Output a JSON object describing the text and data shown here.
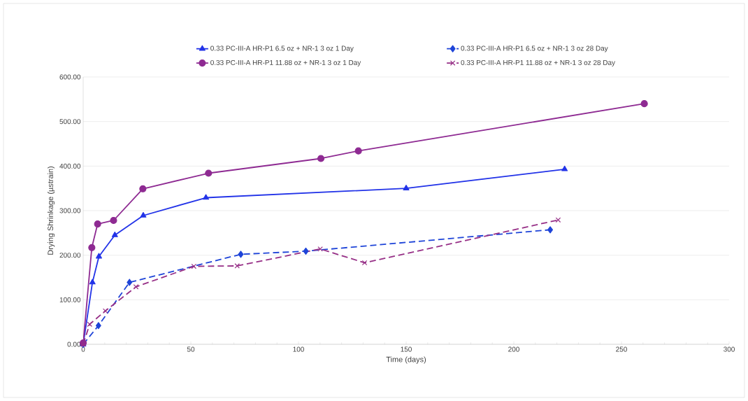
{
  "chart_data": {
    "type": "line",
    "xlabel": "Time (days)",
    "ylabel": "Drying Shrinkage (µstrain)",
    "xlim": [
      0,
      300
    ],
    "xticks": [
      0,
      50,
      100,
      150,
      200,
      250,
      300
    ],
    "ylim": [
      0,
      600
    ],
    "yticks": [
      {
        "value": 0,
        "label": "0.00"
      },
      {
        "value": 100,
        "label": "100.00"
      },
      {
        "value": 200,
        "label": "200.00"
      },
      {
        "value": 300,
        "label": "300.00"
      },
      {
        "value": 400,
        "label": "400.00"
      },
      {
        "value": 500,
        "label": "500.00"
      },
      {
        "value": 600,
        "label": "600.00"
      }
    ],
    "grid": "y",
    "legend": "top",
    "series": [
      {
        "name": "0.33 PC-III-A HR-P1 6.5 oz + NR-1 3 oz 1 Day",
        "color": "#2233e8",
        "marker": "triangle",
        "line_style": "solid",
        "x": [
          0,
          4.3,
          7.3,
          14.7,
          27.9,
          57,
          150,
          223.6
        ],
        "values": [
          0,
          139,
          197,
          245,
          289,
          329,
          350,
          393
        ]
      },
      {
        "name": "0.33 PC-III-A HR-P1 6.5 oz + NR-1 3 oz 28 Day",
        "color": "#1e44d8",
        "marker": "diamond",
        "line_style": "dashed",
        "x": [
          0,
          7.1,
          21.5,
          73.2,
          103.4,
          216.9
        ],
        "values": [
          0,
          42,
          139,
          202,
          209,
          257
        ]
      },
      {
        "name": "0.33 PC-III-A HR-P1 11.88 oz + NR-1 3 oz 1 Day",
        "color": "#8e2a92",
        "marker": "circle",
        "line_style": "solid",
        "x": [
          0,
          4,
          6.7,
          14.1,
          27.7,
          58.2,
          110.4,
          127.8,
          260.6
        ],
        "values": [
          3,
          217,
          270,
          278,
          349,
          384,
          417,
          434,
          540
        ]
      },
      {
        "name": "0.33 PC-III-A HR-P1 11.88 oz + NR-1 3 oz 28 Day",
        "color": "#962e86",
        "marker": "cross",
        "line_style": "dashed",
        "x": [
          0,
          3,
          10.3,
          24.5,
          51.4,
          71.5,
          110.1,
          130.7,
          220.6
        ],
        "values": [
          0,
          45,
          75,
          129,
          175,
          176,
          214,
          183,
          279
        ]
      }
    ]
  }
}
